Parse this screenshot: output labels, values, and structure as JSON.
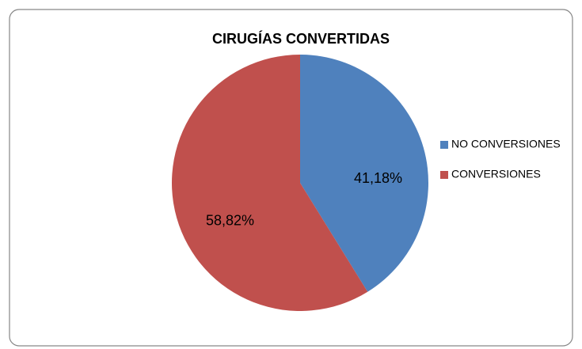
{
  "chart_data": {
    "type": "pie",
    "title": "CIRUGÍAS CONVERTIDAS",
    "categories": [
      "NO CONVERSIONES",
      "CONVERSIONES"
    ],
    "values": [
      41.18,
      58.82
    ],
    "value_labels": [
      "41,18%",
      "58,82%"
    ],
    "colors": [
      "#4f81bd",
      "#c0504d"
    ],
    "legend": "right"
  }
}
